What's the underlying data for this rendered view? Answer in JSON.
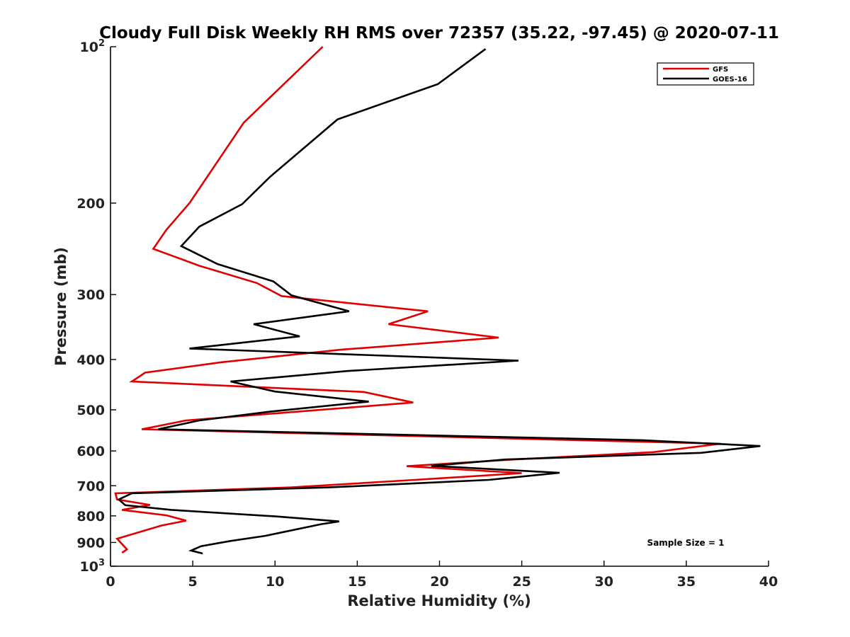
{
  "chart_data": {
    "type": "line",
    "title": "Cloudy Full Disk Weekly RH RMS over 72357 (35.22, -97.45) @ 2020-07-11",
    "xlabel": "Relative Humidity (%)",
    "ylabel": "Pressure (mb)",
    "xlim": [
      0,
      40
    ],
    "ylim": [
      100,
      1000
    ],
    "yscale": "log",
    "y_reversed": true,
    "grid": false,
    "legend_position": "top-right",
    "x_ticks": [
      {
        "value": 0,
        "label": "0"
      },
      {
        "value": 5,
        "label": "5"
      },
      {
        "value": 10,
        "label": "10"
      },
      {
        "value": 15,
        "label": "15"
      },
      {
        "value": 20,
        "label": "20"
      },
      {
        "value": 25,
        "label": "25"
      },
      {
        "value": 30,
        "label": "30"
      },
      {
        "value": 35,
        "label": "35"
      },
      {
        "value": 40,
        "label": "40"
      }
    ],
    "y_ticks": [
      {
        "value": 100,
        "base": "10",
        "exp": "2"
      },
      {
        "value": 200,
        "base": "200",
        "exp": ""
      },
      {
        "value": 300,
        "base": "300",
        "exp": ""
      },
      {
        "value": 400,
        "base": "400",
        "exp": ""
      },
      {
        "value": 500,
        "base": "500",
        "exp": ""
      },
      {
        "value": 600,
        "base": "600",
        "exp": ""
      },
      {
        "value": 700,
        "base": "700",
        "exp": ""
      },
      {
        "value": 800,
        "base": "800",
        "exp": ""
      },
      {
        "value": 900,
        "base": "900",
        "exp": ""
      },
      {
        "value": 1000,
        "base": "10",
        "exp": "3"
      }
    ],
    "annotation": "Sample Size = 1",
    "series": [
      {
        "name": "GFS",
        "color": "#e00000",
        "points": [
          [
            12.9,
            100
          ],
          [
            8.1,
            140
          ],
          [
            4.8,
            200
          ],
          [
            3.4,
            225
          ],
          [
            2.6,
            245
          ],
          [
            5.4,
            264
          ],
          [
            8.9,
            285
          ],
          [
            10.4,
            302
          ],
          [
            19.3,
            323
          ],
          [
            16.9,
            342
          ],
          [
            23.6,
            363
          ],
          [
            14.0,
            383
          ],
          [
            6.7,
            405
          ],
          [
            2.1,
            424
          ],
          [
            1.3,
            441
          ],
          [
            15.4,
            462
          ],
          [
            18.4,
            484
          ],
          [
            4.6,
            524
          ],
          [
            1.9,
            545
          ],
          [
            37.1,
            581
          ],
          [
            33.0,
            603
          ],
          [
            24.5,
            623
          ],
          [
            18.0,
            642
          ],
          [
            25.0,
            662
          ],
          [
            18.5,
            682
          ],
          [
            11.0,
            705
          ],
          [
            0.3,
            724
          ],
          [
            0.4,
            744
          ],
          [
            2.4,
            762
          ],
          [
            0.7,
            779
          ],
          [
            3.4,
            798
          ],
          [
            4.6,
            817
          ],
          [
            3.1,
            835
          ],
          [
            0.4,
            885
          ],
          [
            1.0,
            928
          ],
          [
            0.7,
            942
          ]
        ]
      },
      {
        "name": "GOES-16",
        "color": "#000000",
        "points": [
          [
            22.8,
            101
          ],
          [
            19.9,
            118
          ],
          [
            13.8,
            138
          ],
          [
            9.7,
            178
          ],
          [
            8.0,
            201
          ],
          [
            5.4,
            222
          ],
          [
            4.3,
            242
          ],
          [
            6.5,
            262
          ],
          [
            9.9,
            283
          ],
          [
            11.0,
            301
          ],
          [
            14.5,
            323
          ],
          [
            8.7,
            342
          ],
          [
            11.5,
            361
          ],
          [
            4.8,
            381
          ],
          [
            24.8,
            402
          ],
          [
            14.4,
            421
          ],
          [
            7.3,
            441
          ],
          [
            10.0,
            461
          ],
          [
            15.7,
            482
          ],
          [
            9.7,
            504
          ],
          [
            5.4,
            524
          ],
          [
            2.9,
            545
          ],
          [
            32.3,
            572
          ],
          [
            39.5,
            587
          ],
          [
            35.9,
            605
          ],
          [
            24.0,
            623
          ],
          [
            19.5,
            641
          ],
          [
            27.3,
            661
          ],
          [
            23.0,
            682
          ],
          [
            13.3,
            705
          ],
          [
            1.3,
            724
          ],
          [
            0.5,
            744
          ],
          [
            0.9,
            763
          ],
          [
            3.7,
            779
          ],
          [
            10.1,
            802
          ],
          [
            13.9,
            820
          ],
          [
            12.8,
            830
          ],
          [
            10.7,
            857
          ],
          [
            9.4,
            874
          ],
          [
            7.3,
            894
          ],
          [
            5.5,
            915
          ],
          [
            4.9,
            933
          ],
          [
            5.6,
            945
          ]
        ]
      }
    ]
  }
}
